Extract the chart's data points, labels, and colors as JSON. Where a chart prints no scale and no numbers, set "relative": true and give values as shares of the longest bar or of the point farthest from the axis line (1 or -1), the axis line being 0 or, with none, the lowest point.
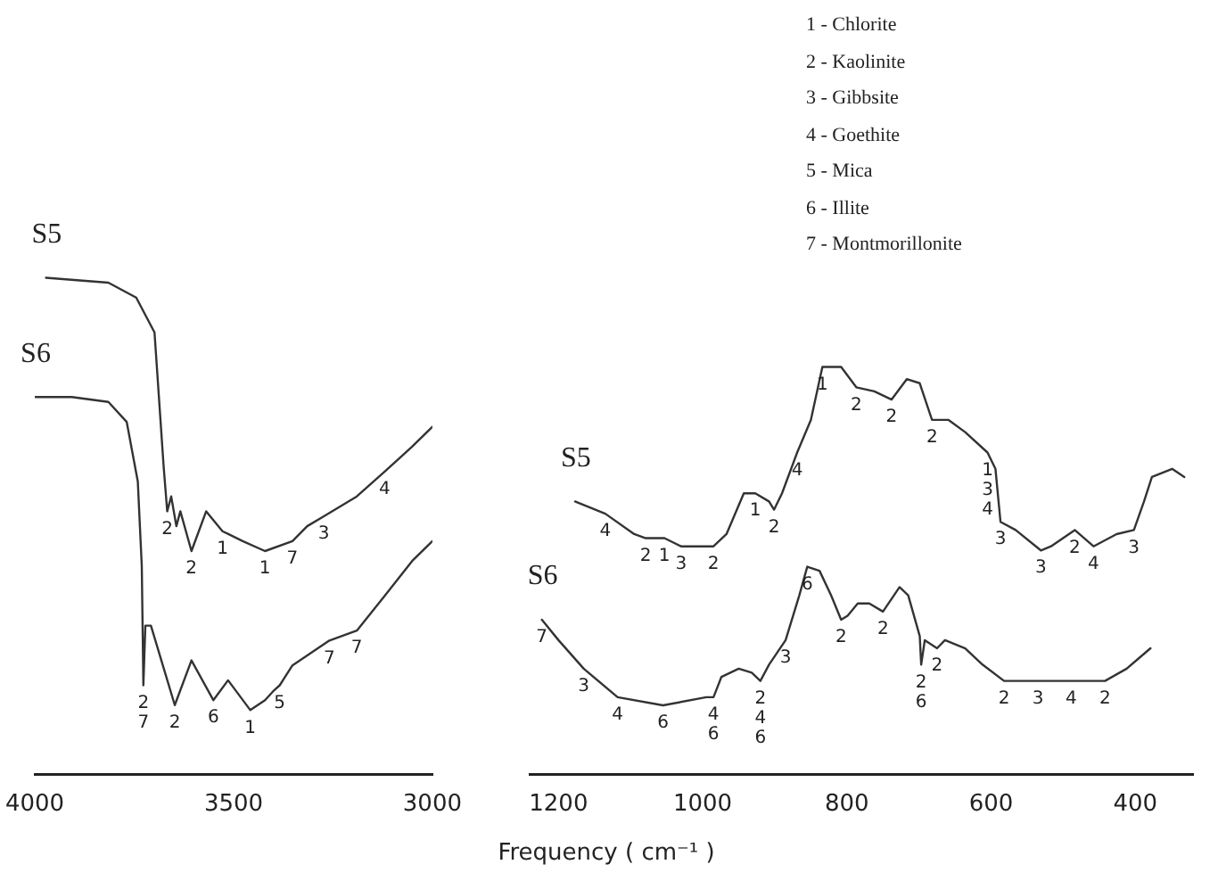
{
  "chart_data": [
    {
      "type": "line",
      "relative": true,
      "marker": "none",
      "xlim": [
        4000,
        3000
      ],
      "xticks": [
        4000,
        3500,
        3000
      ],
      "series": [
        {
          "name": "S5",
          "color": "#333333",
          "x": [
            3972,
            3815,
            3745,
            3699,
            3676,
            3667,
            3657,
            3644,
            3634,
            3606,
            3569,
            3528,
            3477,
            3421,
            3352,
            3315,
            3273,
            3190,
            3120,
            3051,
            3000
          ],
          "values": [
            1.0,
            0.99,
            0.96,
            0.89,
            0.62,
            0.53,
            0.56,
            0.5,
            0.53,
            0.45,
            0.53,
            0.49,
            0.47,
            0.45,
            0.47,
            0.5,
            0.52,
            0.56,
            0.61,
            0.66,
            0.7
          ]
        },
        {
          "name": "S6",
          "color": "#333333",
          "x": [
            4000,
            3907,
            3815,
            3769,
            3741,
            3731,
            3727,
            3722,
            3708,
            3648,
            3606,
            3551,
            3514,
            3458,
            3421,
            3398,
            3384,
            3352,
            3259,
            3190,
            3120,
            3051,
            3000
          ],
          "values": [
            0.76,
            0.76,
            0.75,
            0.71,
            0.59,
            0.42,
            0.18,
            0.3,
            0.3,
            0.14,
            0.23,
            0.15,
            0.19,
            0.13,
            0.15,
            0.17,
            0.18,
            0.22,
            0.27,
            0.29,
            0.36,
            0.43,
            0.47
          ]
        }
      ],
      "annotations": [
        {
          "text": "2",
          "x": 3667,
          "y": 0.53
        },
        {
          "text": "2",
          "x": 3606,
          "y": 0.45
        },
        {
          "text": "1",
          "x": 3528,
          "y": 0.49
        },
        {
          "text": "1",
          "x": 3421,
          "y": 0.45
        },
        {
          "text": "7",
          "x": 3352,
          "y": 0.47
        },
        {
          "text": "3",
          "x": 3273,
          "y": 0.52
        },
        {
          "text": "4",
          "x": 3120,
          "y": 0.61
        },
        {
          "text": "2",
          "x": 3727,
          "y": 0.18
        },
        {
          "text": "7",
          "x": 3727,
          "y": 0.18
        },
        {
          "text": "2",
          "x": 3648,
          "y": 0.14
        },
        {
          "text": "6",
          "x": 3551,
          "y": 0.15
        },
        {
          "text": "1",
          "x": 3458,
          "y": 0.13
        },
        {
          "text": "5",
          "x": 3384,
          "y": 0.18
        },
        {
          "text": "7",
          "x": 3259,
          "y": 0.27
        },
        {
          "text": "7",
          "x": 3190,
          "y": 0.29
        }
      ]
    },
    {
      "type": "line",
      "relative": true,
      "marker": "none",
      "xlim": [
        1240,
        320
      ],
      "xticks": [
        1200,
        1000,
        800,
        600,
        400
      ],
      "xlabel": "Frequency ( cm⁻¹ )",
      "series": [
        {
          "name": "S5",
          "color": "#333333",
          "x": [
            1177,
            1135,
            1095,
            1079,
            1053,
            1030,
            985,
            967,
            943,
            927,
            908,
            901,
            890,
            869,
            850,
            834,
            808,
            787,
            762,
            738,
            717,
            699,
            682,
            659,
            636,
            605,
            594,
            587,
            566,
            531,
            517,
            484,
            458,
            426,
            402,
            388,
            377,
            349,
            332
          ],
          "values": [
            0.67,
            0.64,
            0.59,
            0.58,
            0.58,
            0.56,
            0.56,
            0.59,
            0.69,
            0.69,
            0.67,
            0.65,
            0.69,
            0.79,
            0.87,
            1.0,
            1.0,
            0.95,
            0.94,
            0.92,
            0.97,
            0.96,
            0.87,
            0.87,
            0.84,
            0.79,
            0.75,
            0.62,
            0.6,
            0.55,
            0.56,
            0.6,
            0.56,
            0.59,
            0.6,
            0.67,
            0.73,
            0.75,
            0.73
          ]
        },
        {
          "name": "S6",
          "color": "#333333",
          "x": [
            1223,
            1200,
            1165,
            1118,
            1055,
            995,
            985,
            974,
            950,
            932,
            920,
            908,
            885,
            866,
            855,
            838,
            822,
            808,
            799,
            785,
            769,
            750,
            727,
            715,
            699,
            697,
            692,
            675,
            664,
            636,
            612,
            582,
            535,
            489,
            442,
            412,
            379
          ],
          "values": [
            0.38,
            0.33,
            0.26,
            0.19,
            0.17,
            0.19,
            0.19,
            0.24,
            0.26,
            0.25,
            0.23,
            0.27,
            0.33,
            0.44,
            0.51,
            0.5,
            0.44,
            0.38,
            0.39,
            0.42,
            0.42,
            0.4,
            0.46,
            0.44,
            0.34,
            0.27,
            0.33,
            0.31,
            0.33,
            0.31,
            0.27,
            0.23,
            0.23,
            0.23,
            0.23,
            0.26,
            0.31
          ]
        }
      ],
      "annotations": [
        "1 - Chlorite",
        "2 - Kaolinite",
        "3 - Gibbsite",
        "4 - Goethite",
        "5 - Mica",
        "6 - Illite",
        "7 - Montmorillonite",
        {
          "text": "4",
          "x": 1135,
          "y": 0.64
        },
        {
          "text": "2",
          "x": 1079,
          "y": 0.58
        },
        {
          "text": "1",
          "x": 1053,
          "y": 0.58
        },
        {
          "text": "3",
          "x": 1030,
          "y": 0.56
        },
        {
          "text": "2",
          "x": 985,
          "y": 0.56
        },
        {
          "text": "1",
          "x": 927,
          "y": 0.69
        },
        {
          "text": "2",
          "x": 901,
          "y": 0.65
        },
        {
          "text": "4",
          "x": 869,
          "y": 0.79
        },
        {
          "text": "1",
          "x": 834,
          "y": 1.0
        },
        {
          "text": "2",
          "x": 787,
          "y": 0.95
        },
        {
          "text": "2",
          "x": 738,
          "y": 0.92
        },
        {
          "text": "2",
          "x": 682,
          "y": 0.87
        },
        {
          "text": "1",
          "x": 605,
          "y": 0.79
        },
        {
          "text": "3",
          "x": 605,
          "y": 0.79
        },
        {
          "text": "4",
          "x": 605,
          "y": 0.79
        },
        {
          "text": "3",
          "x": 587,
          "y": 0.62
        },
        {
          "text": "3",
          "x": 531,
          "y": 0.55
        },
        {
          "text": "2",
          "x": 484,
          "y": 0.6
        },
        {
          "text": "4",
          "x": 458,
          "y": 0.56
        },
        {
          "text": "3",
          "x": 402,
          "y": 0.6
        },
        {
          "text": "7",
          "x": 1223,
          "y": 0.38
        },
        {
          "text": "3",
          "x": 1165,
          "y": 0.26
        },
        {
          "text": "4",
          "x": 1118,
          "y": 0.19
        },
        {
          "text": "6",
          "x": 1055,
          "y": 0.17
        },
        {
          "text": "4",
          "x": 985,
          "y": 0.19
        },
        {
          "text": "6",
          "x": 985,
          "y": 0.19
        },
        {
          "text": "2",
          "x": 920,
          "y": 0.23
        },
        {
          "text": "4",
          "x": 920,
          "y": 0.23
        },
        {
          "text": "6",
          "x": 920,
          "y": 0.23
        },
        {
          "text": "3",
          "x": 885,
          "y": 0.33
        },
        {
          "text": "6",
          "x": 855,
          "y": 0.51
        },
        {
          "text": "2",
          "x": 808,
          "y": 0.38
        },
        {
          "text": "2",
          "x": 750,
          "y": 0.4
        },
        {
          "text": "2",
          "x": 697,
          "y": 0.27
        },
        {
          "text": "6",
          "x": 697,
          "y": 0.27
        },
        {
          "text": "2",
          "x": 675,
          "y": 0.31
        },
        {
          "text": "2",
          "x": 582,
          "y": 0.23
        },
        {
          "text": "3",
          "x": 535,
          "y": 0.23
        },
        {
          "text": "4",
          "x": 489,
          "y": 0.23
        },
        {
          "text": "2",
          "x": 442,
          "y": 0.23
        }
      ]
    }
  ]
}
